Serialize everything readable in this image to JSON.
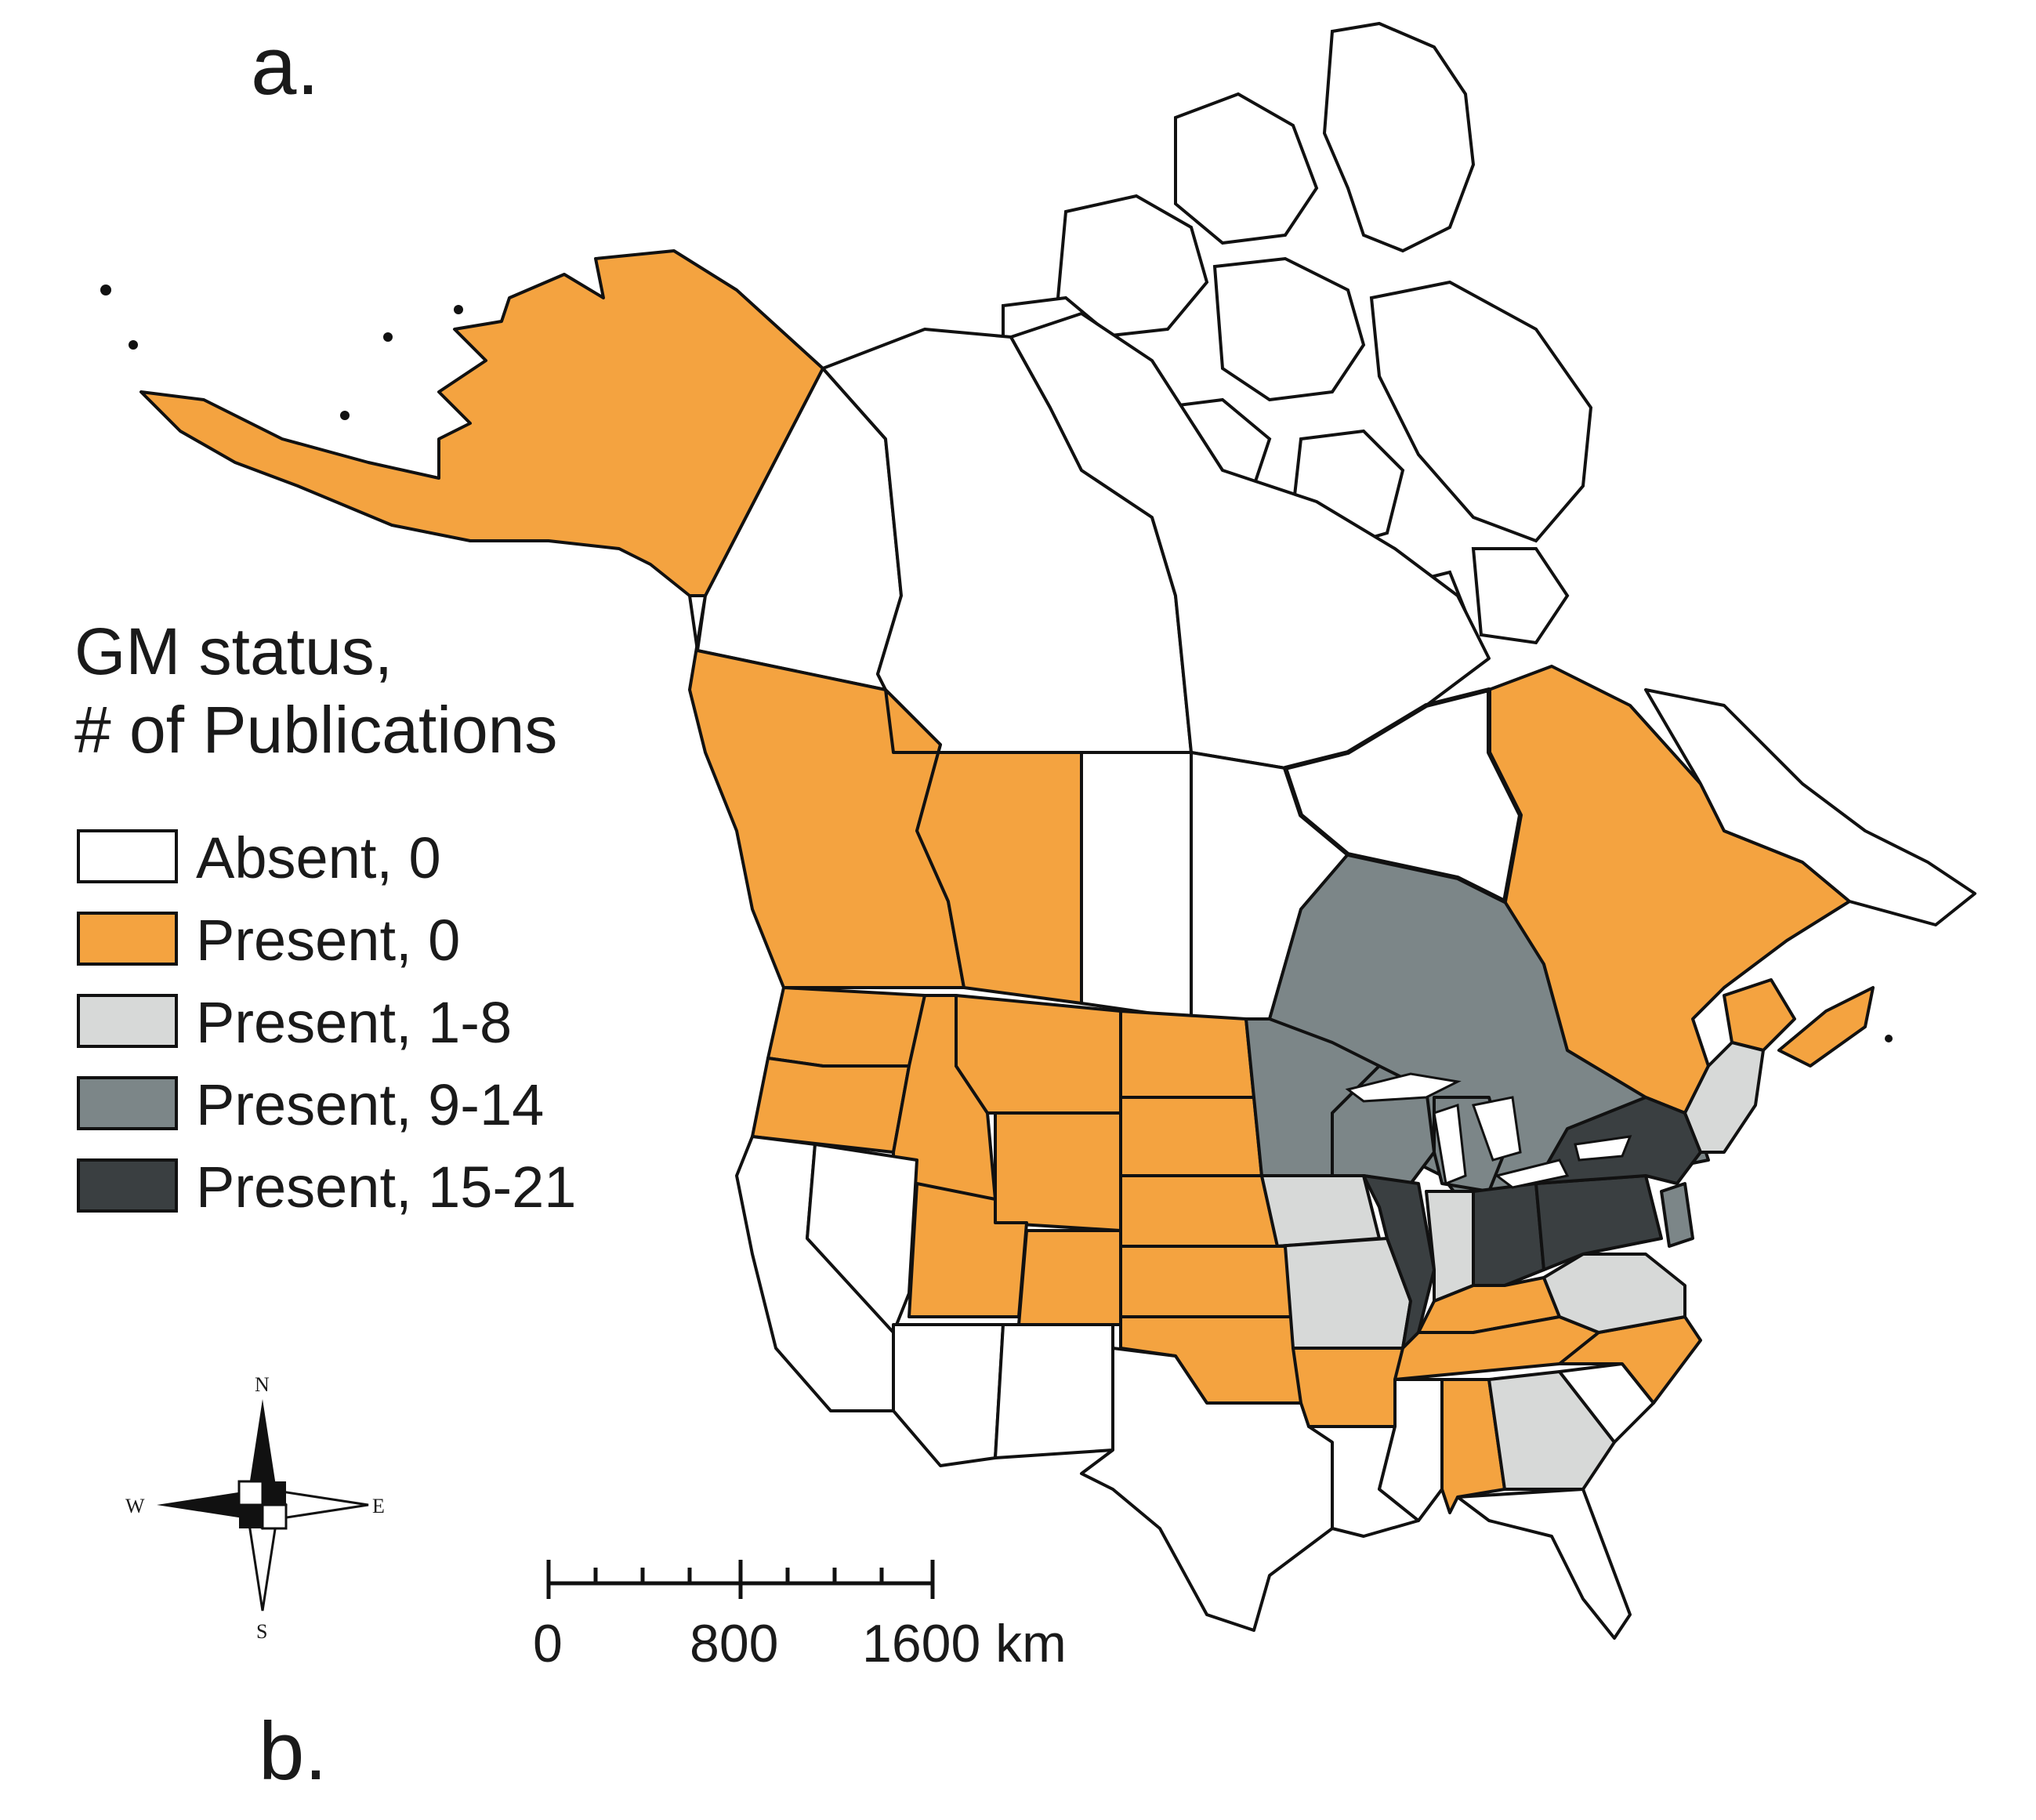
{
  "panel_labels": {
    "top": "a.",
    "bottom": "b."
  },
  "legend": {
    "title_line1": "GM status,",
    "title_line2": "# of Publications",
    "items": [
      {
        "label": "Absent, 0",
        "color": "#ffffff"
      },
      {
        "label": "Present, 0",
        "color": "#f4a340"
      },
      {
        "label": "Present, 1-8",
        "color": "#d7d9d8"
      },
      {
        "label": "Present, 9-14",
        "color": "#7c8688"
      },
      {
        "label": "Present, 15-21",
        "color": "#3a3f41"
      }
    ]
  },
  "scale_bar": {
    "ticks": [
      "0",
      "800",
      "1600 km"
    ]
  },
  "compass": {
    "n": "N",
    "s": "S",
    "e": "E",
    "w": "W"
  }
}
